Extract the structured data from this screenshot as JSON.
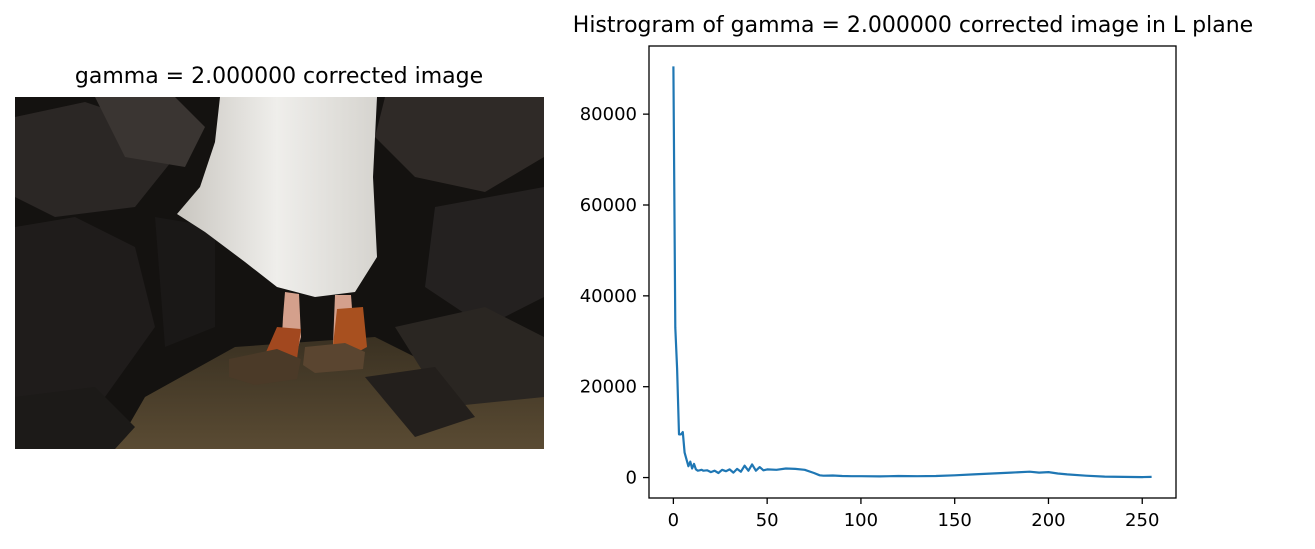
{
  "image_panel": {
    "title": "gamma = 2.000000 corrected image"
  },
  "colors": {
    "line": "#1f77b4",
    "axes": "#000000",
    "background": "#ffffff"
  },
  "chart_data": {
    "type": "line",
    "title": "Histrogram of gamma = 2.000000 corrected image in L plane",
    "xlabel": "",
    "ylabel": "",
    "xlim": [
      -13,
      268
    ],
    "ylim": [
      -4500,
      95000
    ],
    "xticks": [
      0,
      50,
      100,
      150,
      200,
      250
    ],
    "yticks": [
      0,
      20000,
      40000,
      60000,
      80000
    ],
    "grid": false,
    "legend": "none",
    "series": [
      {
        "x": [
          0,
          1,
          2,
          3,
          4,
          5,
          6,
          7,
          8,
          9,
          10,
          11,
          12,
          13,
          14,
          15,
          16,
          18,
          20,
          22,
          24,
          26,
          28,
          30,
          32,
          34,
          36,
          38,
          40,
          42,
          44,
          46,
          48,
          50,
          55,
          60,
          65,
          70,
          75,
          78,
          80,
          85,
          90,
          95,
          100,
          110,
          120,
          130,
          140,
          150,
          160,
          170,
          180,
          190,
          195,
          200,
          205,
          210,
          220,
          230,
          240,
          250,
          255
        ],
        "y": [
          90500,
          33000,
          24000,
          9500,
          9500,
          10000,
          5500,
          4000,
          2500,
          3500,
          2000,
          3000,
          1800,
          1500,
          1600,
          1700,
          1500,
          1600,
          1200,
          1500,
          1000,
          1700,
          1400,
          1800,
          1100,
          1900,
          1300,
          2600,
          1500,
          2900,
          1500,
          2300,
          1600,
          1800,
          1700,
          2000,
          1900,
          1700,
          1000,
          500,
          400,
          450,
          350,
          300,
          300,
          250,
          350,
          300,
          350,
          500,
          700,
          900,
          1100,
          1300,
          1100,
          1200,
          900,
          700,
          400,
          200,
          150,
          100,
          150
        ]
      }
    ]
  }
}
